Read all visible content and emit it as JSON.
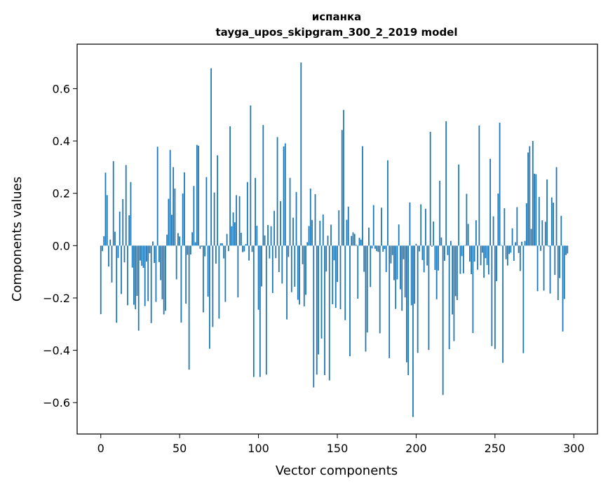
{
  "chart_data": {
    "type": "bar",
    "title": "испанка",
    "subtitle": "tayga_upos_skipgram_300_2_2019 model",
    "xlabel": "Vector components",
    "ylabel": "Components values",
    "xlim": [
      -15,
      315
    ],
    "ylim": [
      -0.72,
      0.77
    ],
    "x_ticks": [
      0,
      50,
      100,
      150,
      200,
      250,
      300
    ],
    "x_tick_labels": [
      "0",
      "50",
      "100",
      "150",
      "200",
      "250",
      "300"
    ],
    "y_ticks": [
      -0.6,
      -0.4,
      -0.2,
      0.0,
      0.2,
      0.4,
      0.6
    ],
    "y_tick_labels": [
      "−0.6",
      "−0.4",
      "−0.2",
      "0.0",
      "0.2",
      "0.4",
      "0.6"
    ],
    "bar_color": "#1f77b4",
    "grid": false,
    "values": [
      -0.262,
      -0.021,
      0.036,
      0.279,
      0.193,
      -0.08,
      0.023,
      -0.141,
      0.323,
      0.053,
      -0.295,
      -0.047,
      0.13,
      -0.185,
      0.178,
      -0.064,
      0.308,
      -0.228,
      0.116,
      0.243,
      -0.084,
      -0.226,
      -0.243,
      -0.192,
      -0.325,
      -0.057,
      -0.077,
      -0.085,
      -0.231,
      -0.061,
      -0.212,
      -0.029,
      -0.296,
      0.016,
      -0.066,
      -0.215,
      0.378,
      -0.063,
      -0.132,
      -0.205,
      -0.263,
      -0.249,
      0.042,
      0.179,
      0.366,
      0.118,
      0.3,
      0.218,
      -0.129,
      0.048,
      0.035,
      -0.294,
      0.199,
      0.28,
      -0.222,
      -0.035,
      -0.474,
      -0.034,
      0.051,
      0.228,
      0.013,
      0.385,
      0.382,
      -0.012,
      -0.004,
      -0.255,
      -0.041,
      0.262,
      -0.195,
      -0.394,
      0.678,
      -0.311,
      0.203,
      -0.069,
      0.345,
      -0.279,
      0.009,
      0.009,
      -0.049,
      -0.215,
      0.045,
      -0.021,
      0.456,
      0.074,
      0.127,
      0.089,
      0.193,
      -0.198,
      0.189,
      0.049,
      -0.025,
      -0.022,
      0.006,
      0.243,
      -0.057,
      0.536,
      -0.024,
      -0.502,
      0.259,
      0.076,
      -0.245,
      -0.502,
      -0.156,
      0.461,
      0.039,
      -0.493,
      0.079,
      -0.049,
      0.074,
      -0.181,
      0.133,
      -0.048,
      0.415,
      -0.101,
      0.17,
      -0.145,
      0.379,
      0.391,
      -0.282,
      -0.043,
      0.259,
      -0.178,
      0.107,
      -0.157,
      0.205,
      -0.207,
      -0.225,
      0.7,
      -0.071,
      -0.232,
      -0.188,
      0.013,
      0.075,
      0.218,
      0.098,
      -0.542,
      0.197,
      -0.493,
      -0.416,
      0.095,
      -0.355,
      0.119,
      -0.495,
      -0.099,
      0.038,
      -0.515,
      0.08,
      -0.224,
      -0.056,
      -0.238,
      -0.139,
      0.135,
      -0.243,
      0.442,
      0.519,
      -0.285,
      0.099,
      0.149,
      -0.423,
      0.037,
      0.051,
      0.045,
      0.003,
      -0.203,
      0.03,
      0.023,
      0.38,
      -0.1,
      -0.405,
      -0.332,
      0.069,
      -0.158,
      -0.011,
      0.155,
      -0.012,
      -0.021,
      -0.024,
      -0.335,
      0.145,
      -0.023,
      -0.013,
      -0.101,
      0.326,
      -0.43,
      -0.068,
      -0.036,
      -0.132,
      -0.242,
      -0.129,
      0.081,
      -0.167,
      -0.249,
      -0.052,
      -0.198,
      -0.446,
      -0.495,
      0.165,
      -0.228,
      -0.655,
      -0.222,
      0.007,
      -0.41,
      -0.022,
      0.158,
      -0.055,
      -0.102,
      0.141,
      -0.076,
      -0.399,
      0.435,
      -0.004,
      0.092,
      -0.093,
      -0.205,
      -0.095,
      0.248,
      0.031,
      -0.571,
      -0.058,
      0.475,
      -0.036,
      -0.396,
      0.018,
      -0.263,
      -0.365,
      -0.193,
      -0.208,
      0.31,
      -0.108,
      -0.04,
      -0.106,
      0.002,
      0.198,
      0.083,
      -0.061,
      -0.109,
      -0.334,
      -0.061,
      0.097,
      -0.092,
      0.459,
      -0.075,
      -0.027,
      -0.123,
      -0.048,
      -0.074,
      -0.11,
      0.332,
      -0.384,
      0.112,
      -0.395,
      -0.136,
      0.199,
      0.47,
      0.002,
      -0.448,
      0.143,
      -0.052,
      -0.076,
      -0.032,
      -0.027,
      0.066,
      -0.058,
      0.013,
      0.147,
      -0.028,
      -0.097,
      0.015,
      -0.411,
      0.018,
      0.162,
      0.356,
      0.38,
      0.064,
      0.4,
      0.275,
      0.273,
      -0.174,
      0.186,
      -0.02,
      0.097,
      -0.172,
      0.091,
      0.253,
      -0.003,
      -0.183,
      0.184,
      0.164,
      -0.112,
      0.3,
      -0.208,
      -0.124,
      0.114,
      -0.328,
      -0.204,
      -0.036,
      -0.03
    ]
  }
}
